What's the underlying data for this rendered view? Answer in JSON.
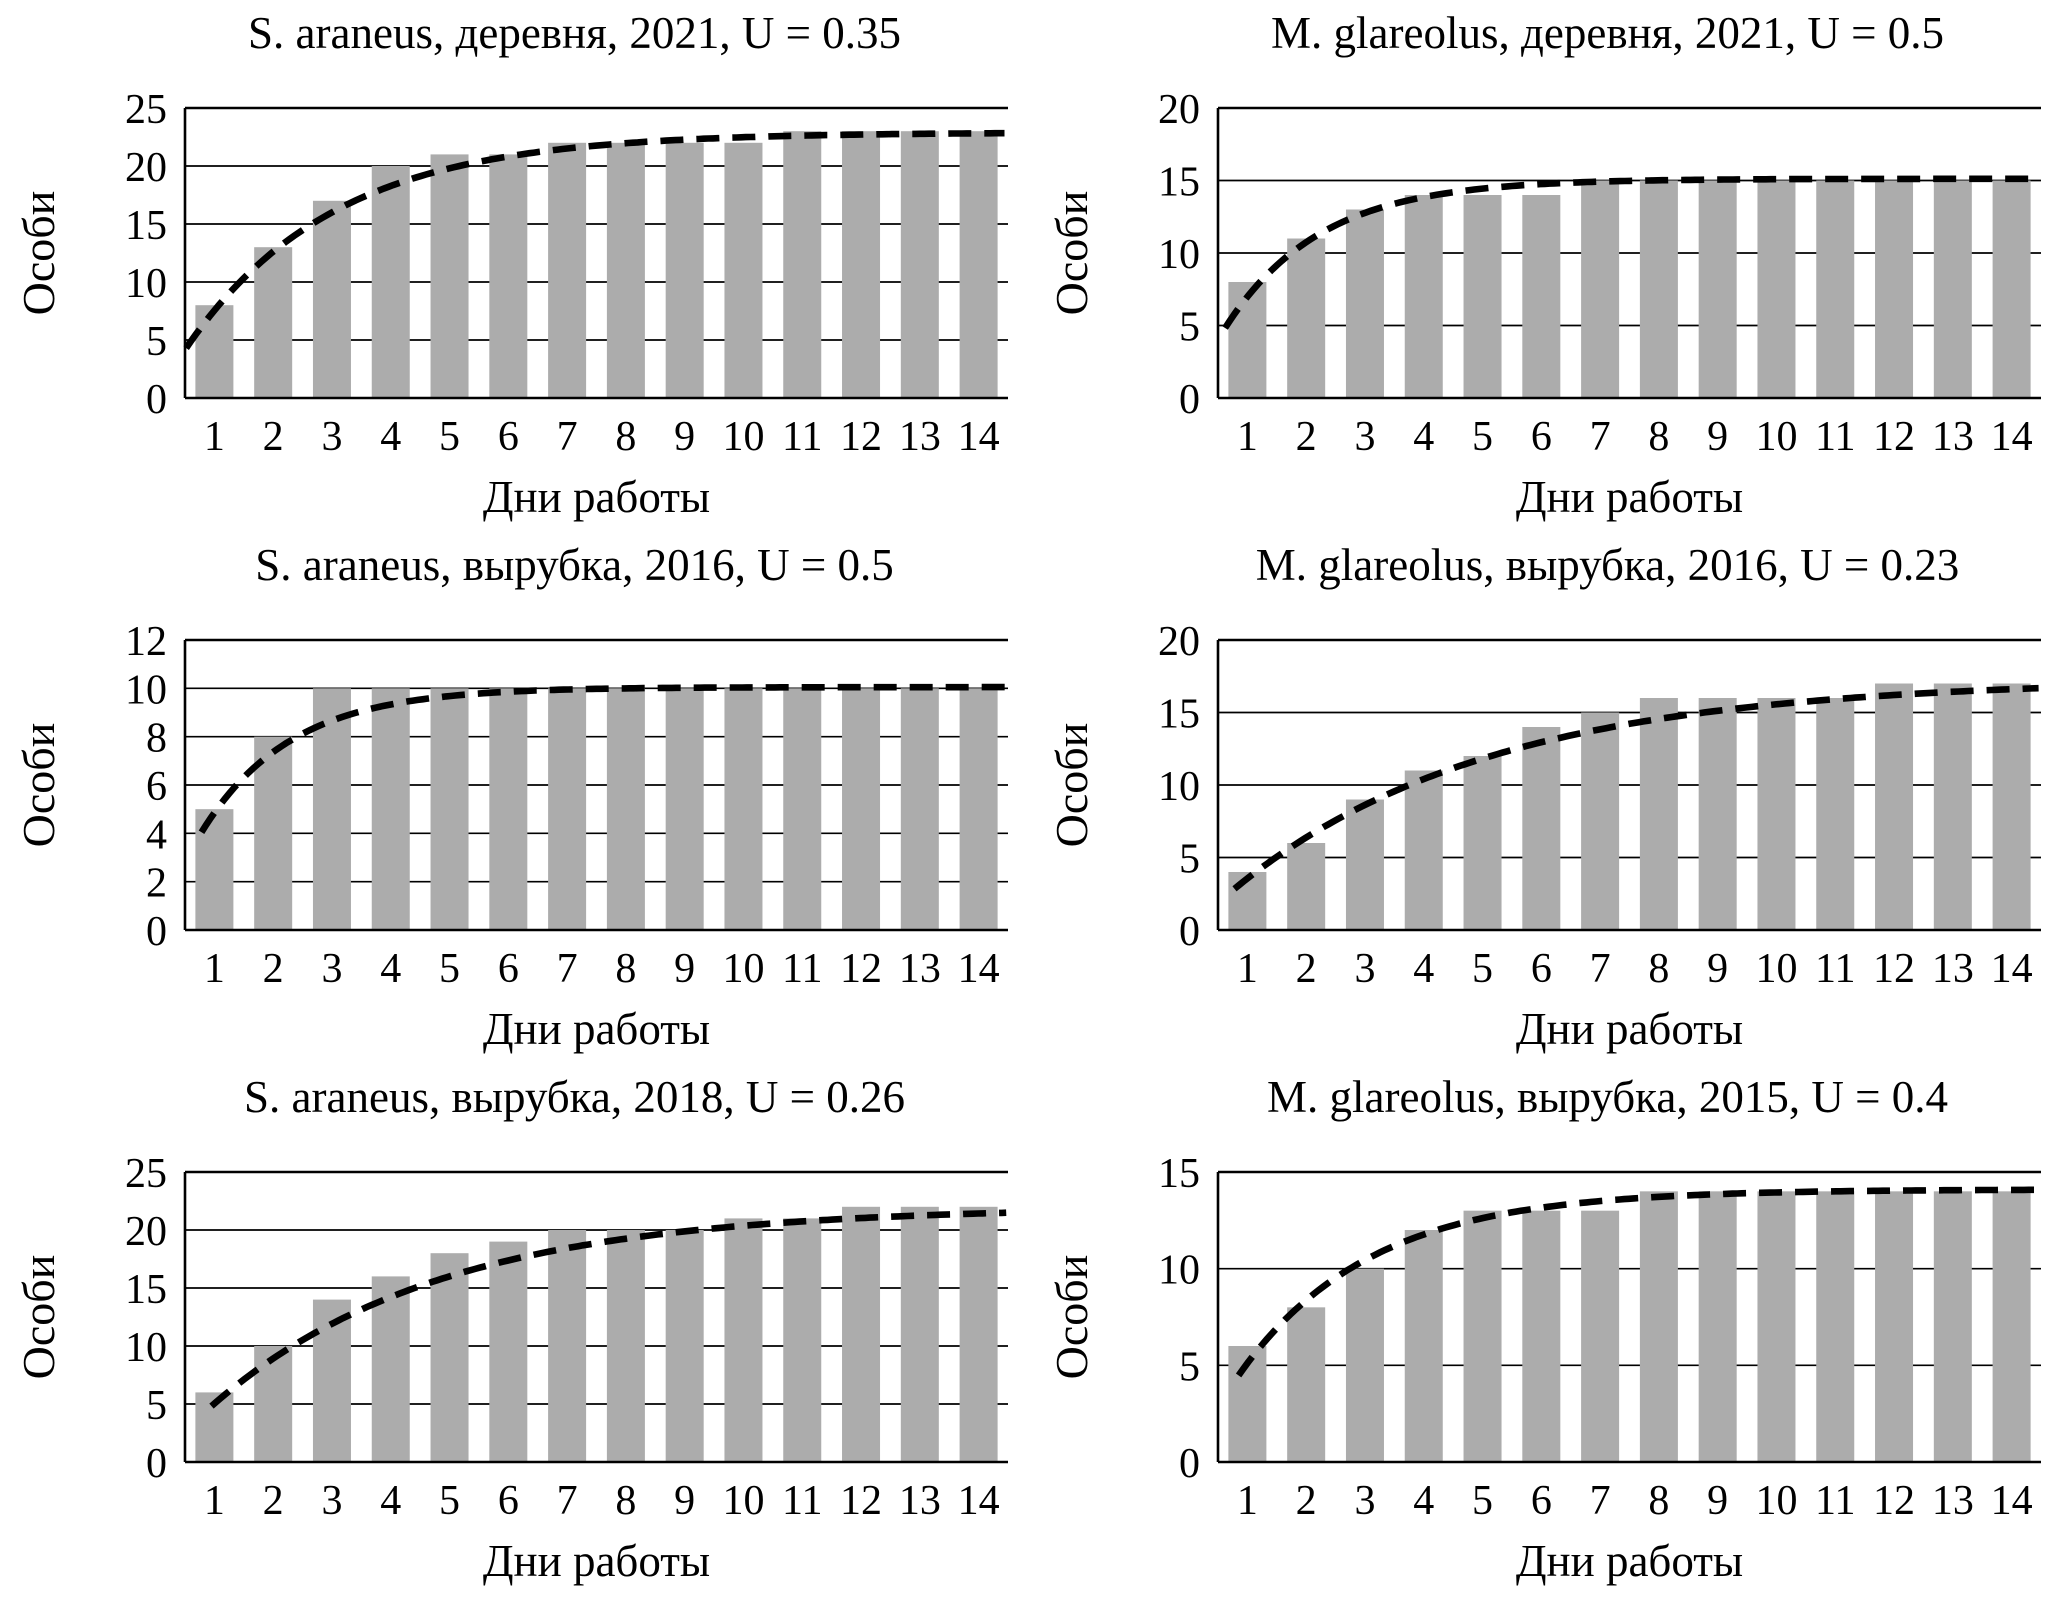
{
  "figure": {
    "background": "#FFFFFF",
    "ink_color": "#000000",
    "bar_color": "#ACACAC",
    "rows": 3,
    "cols": 2
  },
  "chart_data": [
    {
      "type": "bar",
      "title": "S. araneus, деревня, 2021, U = 0.35",
      "U": 0.35,
      "xlabel": "Дни работы",
      "ylabel": "Особи",
      "categories": [
        1,
        2,
        3,
        4,
        5,
        6,
        7,
        8,
        9,
        10,
        11,
        12,
        13,
        14
      ],
      "values": [
        8,
        13,
        17,
        20,
        21,
        21,
        22,
        22,
        22,
        22,
        23,
        23,
        23,
        23
      ],
      "ylim": [
        0,
        25
      ],
      "yticks": [
        0,
        5,
        10,
        15,
        20,
        25
      ],
      "grid": true,
      "curve": {
        "model": "A(1-exp(-kt))",
        "A": 22.9,
        "k": 0.4,
        "t_start": 0.52,
        "t_end": 14.5
      }
    },
    {
      "type": "bar",
      "title": "M. glareolus, деревня, 2021, U = 0.5",
      "U": 0.5,
      "xlabel": "Дни работы",
      "ylabel": "Особи",
      "categories": [
        1,
        2,
        3,
        4,
        5,
        6,
        7,
        8,
        9,
        10,
        11,
        12,
        13,
        14
      ],
      "values": [
        8,
        11,
        13,
        14,
        14,
        14,
        15,
        15,
        15,
        15,
        15,
        15,
        15,
        15
      ],
      "ylim": [
        0,
        20
      ],
      "yticks": [
        0,
        5,
        10,
        15,
        20
      ],
      "grid": true,
      "curve": {
        "model": "A(1-exp(-kt))",
        "A": 15.12,
        "k": 0.62,
        "t_start": 0.62,
        "t_end": 14.5
      }
    },
    {
      "type": "bar",
      "title": "S. araneus, вырубка, 2016, U = 0.5",
      "U": 0.5,
      "xlabel": "Дни работы",
      "ylabel": "Особи",
      "categories": [
        1,
        2,
        3,
        4,
        5,
        6,
        7,
        8,
        9,
        10,
        11,
        12,
        13,
        14
      ],
      "values": [
        5,
        8,
        10,
        10,
        10,
        10,
        10,
        10,
        10,
        10,
        10,
        10,
        10,
        10
      ],
      "ylim": [
        0,
        12
      ],
      "yticks": [
        0,
        2,
        4,
        6,
        8,
        10,
        12
      ],
      "grid": true,
      "curve": {
        "model": "A(1-exp(-kt))",
        "A": 10.05,
        "k": 0.66,
        "t_start": 0.78,
        "t_end": 14.5
      }
    },
    {
      "type": "bar",
      "title": "M. glareolus, вырубка, 2016, U = 0.23",
      "U": 0.23,
      "xlabel": "Дни работы",
      "ylabel": "Особи",
      "categories": [
        1,
        2,
        3,
        4,
        5,
        6,
        7,
        8,
        9,
        10,
        11,
        12,
        13,
        14
      ],
      "values": [
        4,
        6,
        9,
        11,
        12,
        14,
        15,
        16,
        16,
        16,
        16,
        17,
        17,
        17
      ],
      "ylim": [
        0,
        20
      ],
      "yticks": [
        0,
        5,
        10,
        15,
        20
      ],
      "grid": true,
      "curve": {
        "model": "A(1-exp(-kt))",
        "A": 17.3,
        "k": 0.23,
        "t_start": 0.78,
        "t_end": 14.5
      }
    },
    {
      "type": "bar",
      "title": "S. araneus, вырубка, 2018, U = 0.26",
      "U": 0.26,
      "xlabel": "Дни работы",
      "ylabel": "Особи",
      "categories": [
        1,
        2,
        3,
        4,
        5,
        6,
        7,
        8,
        9,
        10,
        11,
        12,
        13,
        14
      ],
      "values": [
        6,
        10,
        14,
        16,
        18,
        19,
        20,
        20,
        20,
        21,
        21,
        22,
        22,
        22
      ],
      "ylim": [
        0,
        25
      ],
      "yticks": [
        0,
        5,
        10,
        15,
        20,
        25
      ],
      "grid": true,
      "curve": {
        "model": "A(1-exp(-kt))",
        "A": 22.0,
        "k": 0.26,
        "t_start": 0.95,
        "t_end": 14.5
      }
    },
    {
      "type": "bar",
      "title": "M. glareolus, вырубка, 2015, U = 0.4",
      "U": 0.4,
      "xlabel": "Дни работы",
      "ylabel": "Особи",
      "categories": [
        1,
        2,
        3,
        4,
        5,
        6,
        7,
        8,
        9,
        10,
        11,
        12,
        13,
        14
      ],
      "values": [
        6,
        8,
        10,
        12,
        13,
        13,
        13,
        14,
        14,
        14,
        14,
        14,
        14,
        14
      ],
      "ylim": [
        0,
        15
      ],
      "yticks": [
        0,
        5,
        10,
        15
      ],
      "grid": true,
      "curve": {
        "model": "A(1-exp(-kt))",
        "A": 14.1,
        "k": 0.45,
        "t_start": 0.85,
        "t_end": 14.5
      }
    }
  ]
}
